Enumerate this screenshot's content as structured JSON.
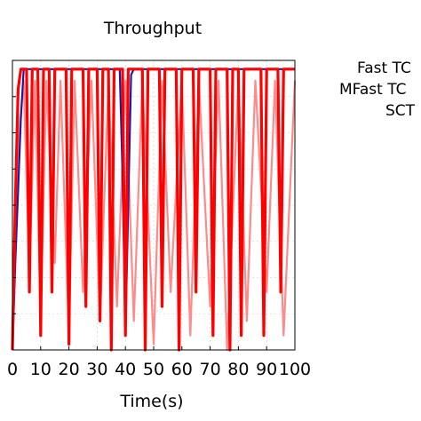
{
  "chart_data": {
    "type": "line",
    "title": "Throughput",
    "xlabel": "Time(s)",
    "ylabel": "",
    "xlim": [
      0,
      100
    ],
    "ylim": [
      0,
      1
    ],
    "x_ticks": [
      "0",
      "10",
      "20",
      "30",
      "40",
      "50",
      "60",
      "70",
      "80",
      "90",
      "100"
    ],
    "grid": true,
    "legend": {
      "placement": "outside-right",
      "entries": [
        "Fast TC",
        "MFast TC",
        "SCT"
      ]
    },
    "series": [
      {
        "name": "Fast TC",
        "color": "#1a1aa8",
        "x": [
          0,
          1,
          2,
          3,
          4,
          5,
          38,
          39,
          40,
          41,
          42,
          43,
          100
        ],
        "values": [
          0.0,
          0.3,
          0.55,
          0.8,
          0.97,
          0.97,
          0.97,
          0.6,
          0.05,
          0.5,
          0.95,
          0.97,
          0.97
        ]
      },
      {
        "name": "MFast TC",
        "color": "#ff0000",
        "x": [
          0,
          1,
          2,
          3,
          5,
          6,
          7,
          9,
          10,
          11,
          13,
          14,
          15,
          19,
          20,
          21,
          25,
          26,
          27,
          30,
          31,
          32,
          34,
          35,
          36,
          39,
          40,
          41,
          46,
          47,
          48,
          52,
          53,
          54,
          58,
          59,
          60,
          64,
          65,
          66,
          70,
          71,
          72,
          76,
          77,
          78,
          80,
          81,
          82,
          88,
          89,
          90,
          94,
          95,
          96,
          100
        ],
        "values": [
          0.0,
          0.5,
          0.9,
          0.97,
          0.97,
          0.2,
          0.97,
          0.97,
          0.05,
          0.97,
          0.97,
          0.2,
          0.97,
          0.97,
          0.02,
          0.97,
          0.97,
          0.15,
          0.97,
          0.97,
          0.1,
          0.97,
          0.97,
          0.0,
          0.97,
          0.97,
          0.05,
          0.97,
          0.97,
          0.0,
          0.97,
          0.97,
          0.15,
          0.97,
          0.97,
          0.0,
          0.97,
          0.97,
          0.2,
          0.97,
          0.97,
          0.05,
          0.97,
          0.97,
          0.0,
          0.97,
          0.97,
          0.05,
          0.97,
          0.97,
          0.05,
          0.97,
          0.97,
          0.2,
          0.97,
          0.97
        ]
      },
      {
        "name": "SCT",
        "color": "#ff8a8a",
        "x": [
          0,
          2,
          4,
          6,
          8,
          10,
          12,
          15,
          17,
          20,
          22,
          25,
          28,
          31,
          34,
          37,
          40,
          43,
          46,
          50,
          53,
          56,
          60,
          63,
          66,
          70,
          73,
          76,
          80,
          83,
          86,
          90,
          93,
          96,
          100
        ],
        "values": [
          0.0,
          0.7,
          0.93,
          0.25,
          0.93,
          0.1,
          0.93,
          0.3,
          0.93,
          0.05,
          0.93,
          0.2,
          0.93,
          0.1,
          0.93,
          0.15,
          0.93,
          0.1,
          0.93,
          0.02,
          0.93,
          0.2,
          0.93,
          0.05,
          0.93,
          0.15,
          0.93,
          0.0,
          0.93,
          0.1,
          0.93,
          0.2,
          0.93,
          0.05,
          0.93
        ]
      }
    ]
  }
}
